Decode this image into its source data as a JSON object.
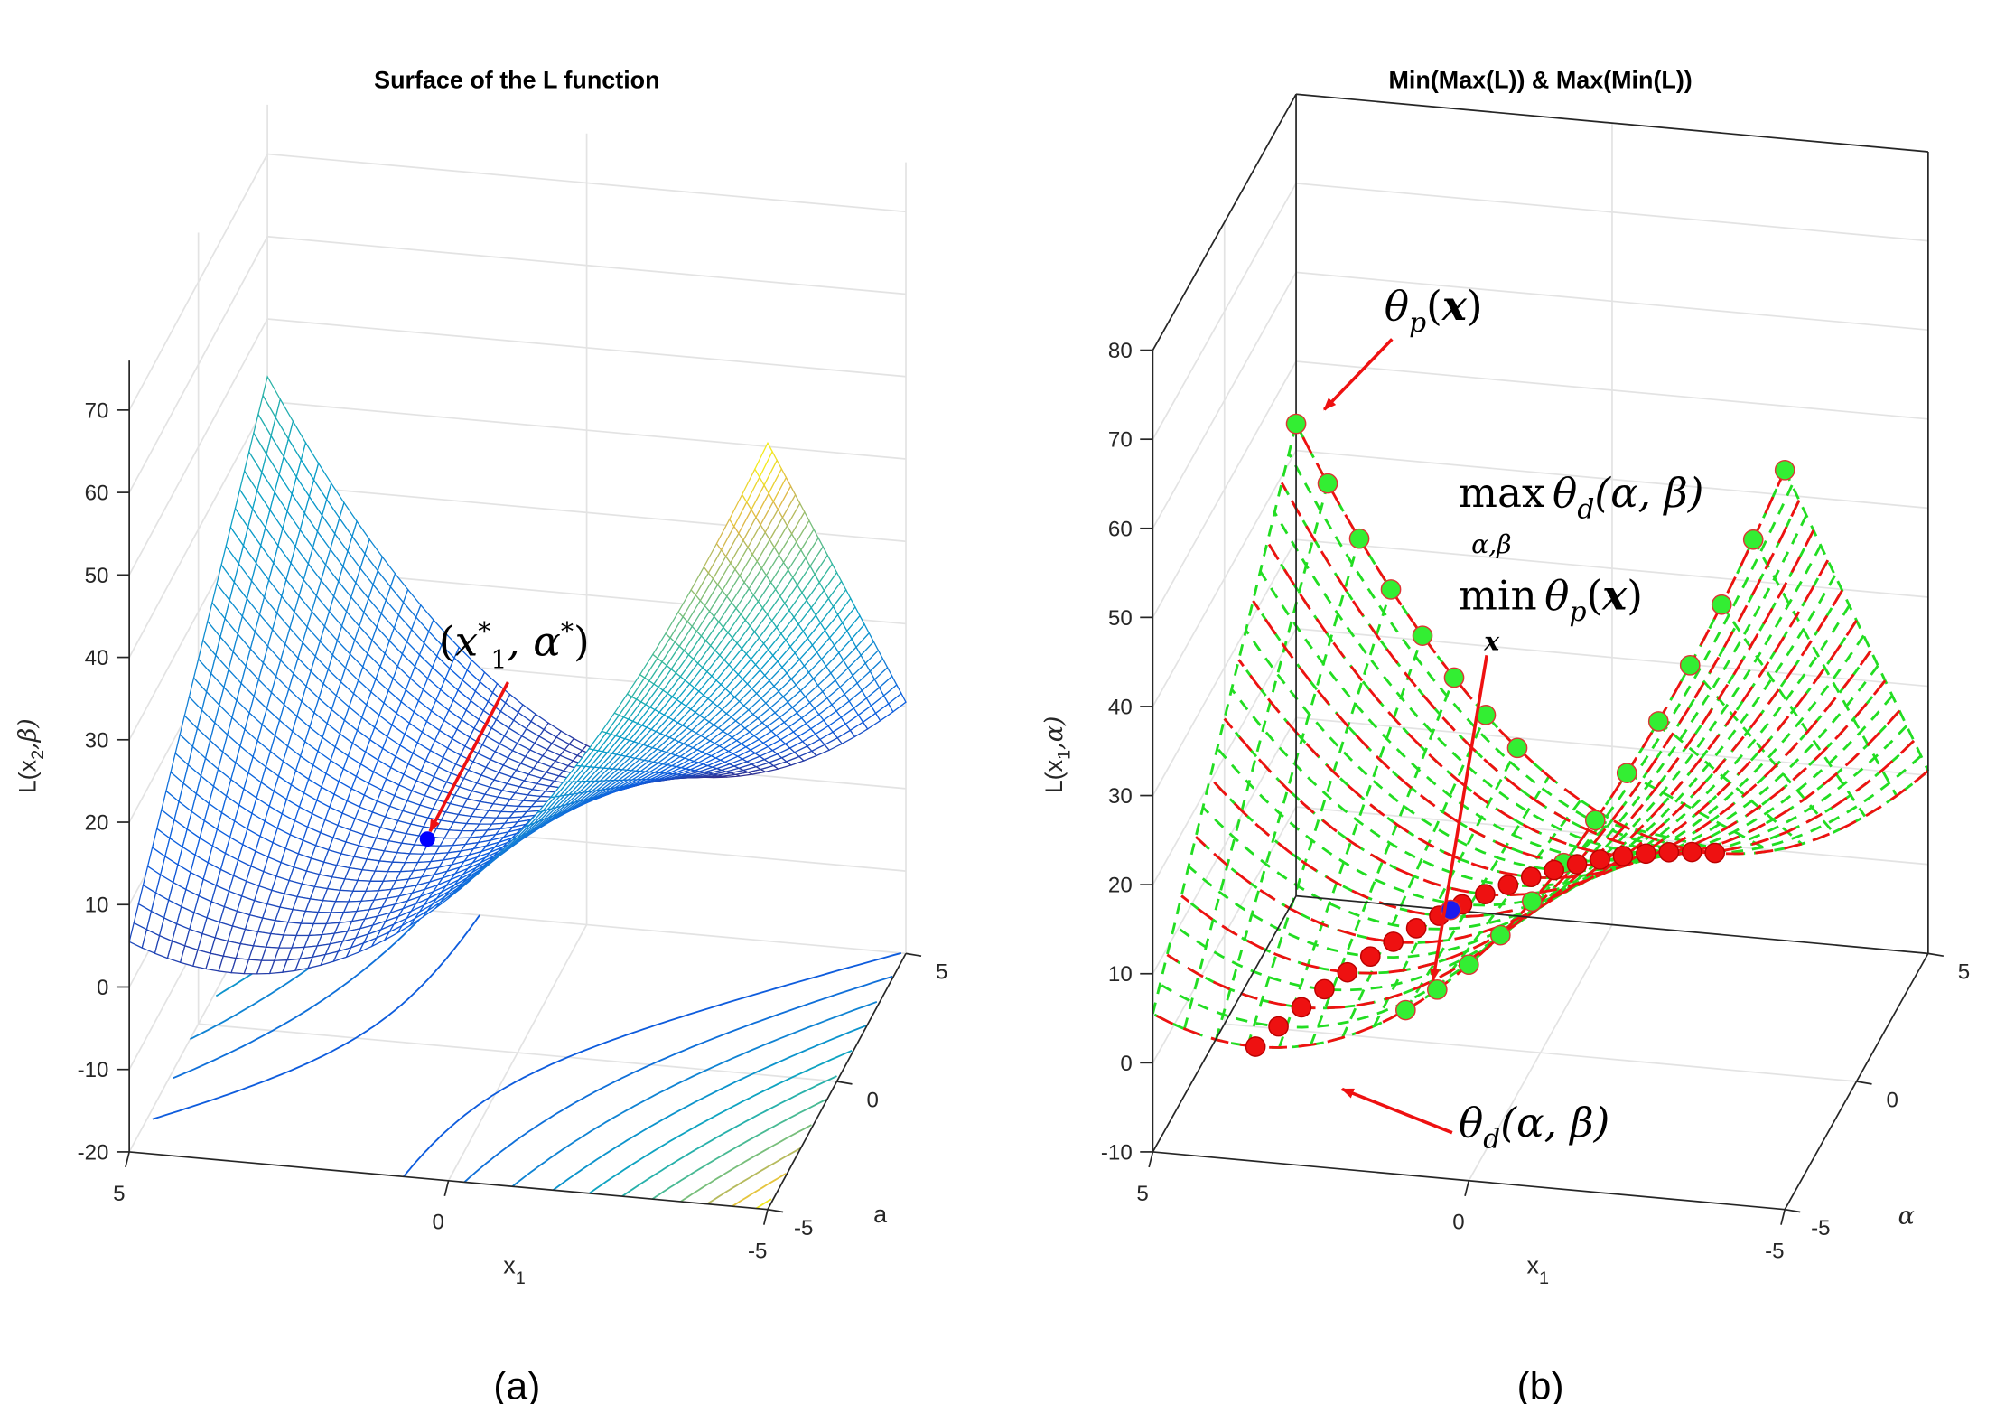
{
  "figure": {
    "panel_a_label": "(a)",
    "panel_b_label": "(b)"
  },
  "chart_data": [
    {
      "type": "surface",
      "style": "mesh",
      "colormap": "parula",
      "title": "Surface of the L function",
      "xlabel": {
        "base": "x",
        "sub": "1"
      },
      "ylabel": "a",
      "zlabel": {
        "pre": "L(x",
        "sub": "2",
        "post": ",β)"
      },
      "xlim": [
        -5,
        5
      ],
      "ylim": [
        -5,
        5
      ],
      "zlim": [
        -20,
        76
      ],
      "xticks": [
        "5",
        "0",
        "-5"
      ],
      "yticks": [
        "-5",
        "0",
        "5"
      ],
      "zticks": [
        "70",
        "60",
        "50",
        "40",
        "30",
        "20",
        "10",
        "0",
        "-10",
        "-20"
      ],
      "floor_contours": true,
      "grid": true,
      "surface_model": {
        "xx": 1,
        "xa": 1,
        "a": -1.25,
        "x": -1.75,
        "c": 8
      },
      "annotations": [
        {
          "name": "saddle-point",
          "parts": {
            "open": "(",
            "v1": "x",
            "sub": "1",
            "sup1": "*",
            "sep": ", ",
            "v2": "α",
            "sup2": "*",
            "close": ")"
          }
        }
      ],
      "saddle_point": {
        "x1": 1.25,
        "a": -0.75,
        "color": "#0000ff"
      }
    },
    {
      "type": "surface",
      "style": "dashed-mesh",
      "title": "Min(Max(L)) & Max(Min(L))",
      "xlabel": {
        "base": "x",
        "sub": "1"
      },
      "ylabel": "α",
      "zlabel": {
        "pre": "L(x",
        "sub": "1",
        "post": ",α)"
      },
      "xlim": [
        -5,
        5
      ],
      "ylim": [
        -5,
        5
      ],
      "zlim": [
        -10,
        80
      ],
      "xticks": [
        "5",
        "0",
        "-5"
      ],
      "yticks": [
        "-5",
        "0",
        "5"
      ],
      "zticks": [
        "80",
        "70",
        "60",
        "50",
        "40",
        "30",
        "20",
        "10",
        "0",
        "-10"
      ],
      "grid": true,
      "mesh_color": "#22dd22",
      "dual_line_color": "#ee1111",
      "primal_marker_color": "#33ee33",
      "dual_marker_color": "#ee1111",
      "saddle_color": "#1a1aee",
      "primal_x_values": [
        -5,
        -4.5,
        -4,
        -3.5,
        -3,
        -2.5,
        -2,
        -1.5,
        -1,
        -0.5,
        0,
        0.5,
        1,
        1.5,
        2,
        2.5,
        3,
        3.5,
        4,
        4.5,
        5
      ],
      "dual_alpha_values": [
        -5,
        -4.5,
        -4,
        -3.5,
        -3,
        -2.5,
        -2,
        -1.5,
        -1,
        -0.5,
        0,
        0.5,
        1,
        1.5,
        2,
        2.5,
        3,
        3.5,
        4,
        4.5,
        5
      ],
      "annotations": {
        "theta_p": {
          "theta": "θ",
          "sub": "p",
          "open": "(",
          "x": "x",
          "close": ")"
        },
        "max_theta_d": {
          "op": "max",
          "under": "α,β",
          "theta": "θ",
          "sub": "d",
          "args": "(α, β)"
        },
        "min_theta_p": {
          "op": "min",
          "under": "x",
          "theta": "θ",
          "sub": "p",
          "open": "(",
          "x": "x",
          "close": ")"
        },
        "theta_d": {
          "theta": "θ",
          "sub": "d",
          "args": "(α, β)"
        }
      }
    }
  ]
}
